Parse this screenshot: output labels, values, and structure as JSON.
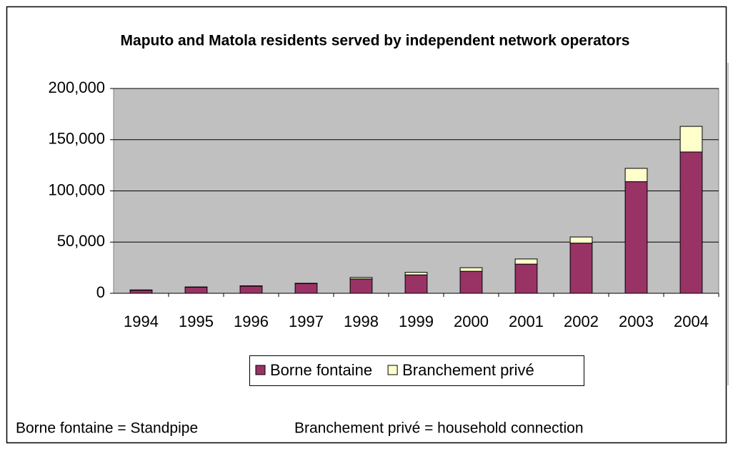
{
  "chart_data": {
    "type": "stacked_bar",
    "title": "Maputo and Matola residents served by independent network operators",
    "categories": [
      "1994",
      "1995",
      "1996",
      "1997",
      "1998",
      "1999",
      "2000",
      "2001",
      "2002",
      "2003",
      "2004"
    ],
    "series": [
      {
        "name": "Borne fontaine",
        "color": "#993366",
        "values": [
          3000,
          6000,
          7000,
          9500,
          14000,
          18000,
          21500,
          28500,
          49000,
          109000,
          138000
        ]
      },
      {
        "name": "Branchement privé",
        "color": "#ffffcc",
        "values": [
          300,
          200,
          300,
          300,
          1500,
          2500,
          3500,
          5000,
          6000,
          13000,
          25000
        ]
      }
    ],
    "ylim": [
      0,
      200000
    ],
    "yticks": [
      0,
      {
        "value": 50000,
        "label": "50,000"
      },
      {
        "value": 100000,
        "label": "100,000"
      },
      {
        "value": 150000,
        "label": "150,000"
      },
      {
        "value": 200000,
        "label": "200,000"
      }
    ],
    "grid": true,
    "legend": "bottom",
    "notes": [
      "Borne fontaine = Standpipe",
      "Branchement privé = household connection"
    ]
  }
}
